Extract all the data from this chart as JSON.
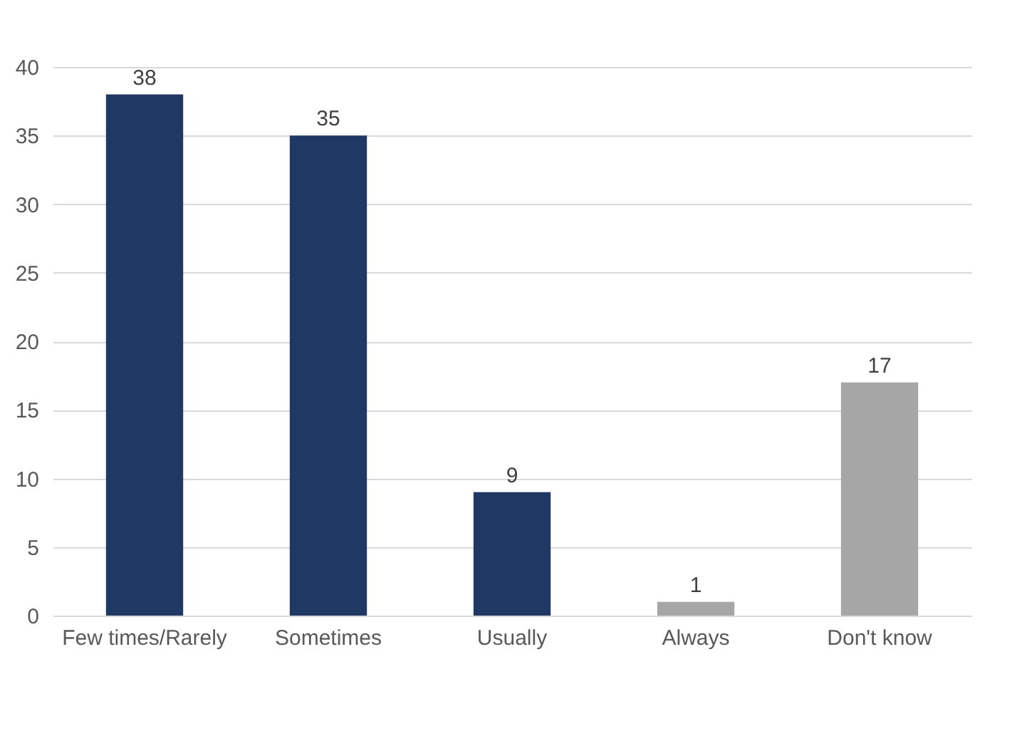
{
  "chart_data": {
    "type": "bar",
    "categories": [
      "Few times/Rarely",
      "Sometimes",
      "Usually",
      "Always",
      "Don't know"
    ],
    "values": [
      38,
      35,
      9,
      1,
      17
    ],
    "colors": [
      "#1f3864",
      "#1f3864",
      "#1f3864",
      "#a6a6a6",
      "#a6a6a6"
    ],
    "ylim": [
      0,
      40
    ],
    "yticks": [
      0,
      5,
      10,
      15,
      20,
      25,
      30,
      35,
      40
    ],
    "grid": "y",
    "data_labels": true
  }
}
